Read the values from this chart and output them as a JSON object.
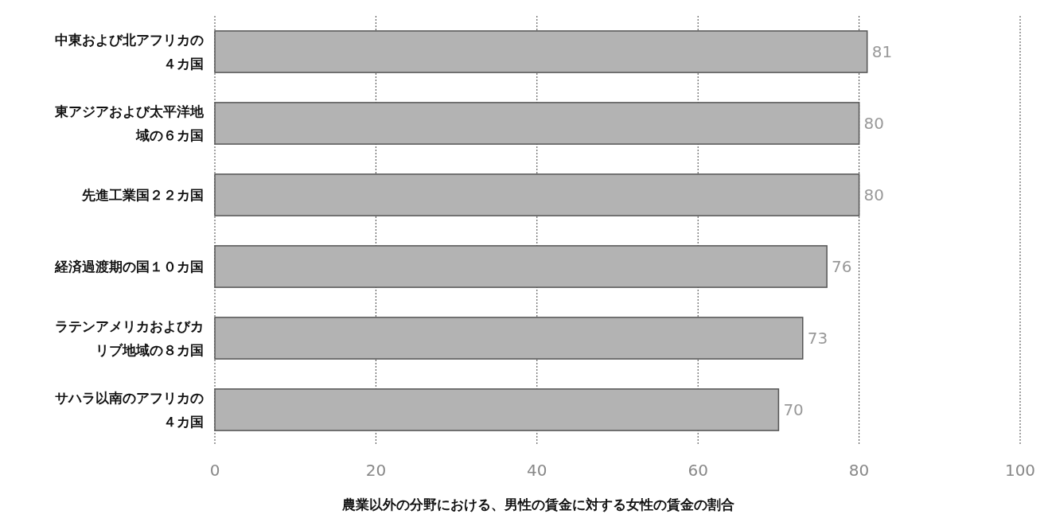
{
  "chart_data": {
    "type": "bar",
    "orientation": "horizontal",
    "categories": [
      "中東および北アフリカの４カ国",
      "東アジアおよび太平洋地域の６カ国",
      "先進工業国２２カ国",
      "経済過渡期の国１０カ国",
      "ラテンアメリカおよびカリブ地域の８カ国",
      "サハラ以南のアフリカの４カ国"
    ],
    "values": [
      81,
      80,
      80,
      76,
      73,
      70
    ],
    "color": "#b3b3b3",
    "data_labels": true,
    "xlim": [
      0,
      100
    ],
    "xticks": [
      0,
      20,
      40,
      60,
      80,
      100
    ],
    "xlabel": "農業以外の分野における、男性の賃金に対する女性の賃金の割合",
    "grid": "x"
  }
}
